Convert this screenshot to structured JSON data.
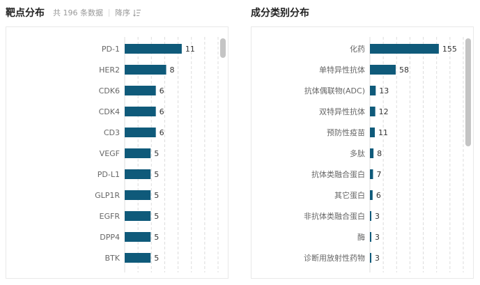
{
  "left": {
    "title": "靶点分布",
    "count_text": "共 196 条数据",
    "sort_label": "降序",
    "sort_icon": "sort-descending-icon"
  },
  "right": {
    "title": "成分类别分布"
  },
  "colors": {
    "bar": "#0f5a7a",
    "grid": "#dcdcdc",
    "label": "#666666",
    "value": "#333333"
  },
  "chart_data": [
    {
      "type": "bar",
      "orientation": "horizontal",
      "categories": [
        "PD-1",
        "HER2",
        "CDK6",
        "CDK4",
        "CD3",
        "VEGF",
        "PD-L1",
        "GLP1R",
        "EGFR",
        "DPP4",
        "BTK"
      ],
      "values": [
        11,
        8,
        6,
        6,
        6,
        5,
        5,
        5,
        5,
        5,
        5
      ],
      "xlim": [
        0,
        18
      ],
      "grid": true
    },
    {
      "type": "bar",
      "orientation": "horizontal",
      "categories": [
        "化药",
        "单特异性抗体",
        "抗体偶联物(ADC)",
        "双特异性抗体",
        "预防性疫苗",
        "多肽",
        "抗体类融合蛋白",
        "其它蛋白",
        "非抗体类融合蛋白",
        "酶",
        "诊断用放射性药物"
      ],
      "values": [
        155,
        58,
        13,
        12,
        11,
        8,
        7,
        6,
        3,
        3,
        3
      ],
      "xlim": [
        0,
        210
      ],
      "grid": true
    }
  ]
}
